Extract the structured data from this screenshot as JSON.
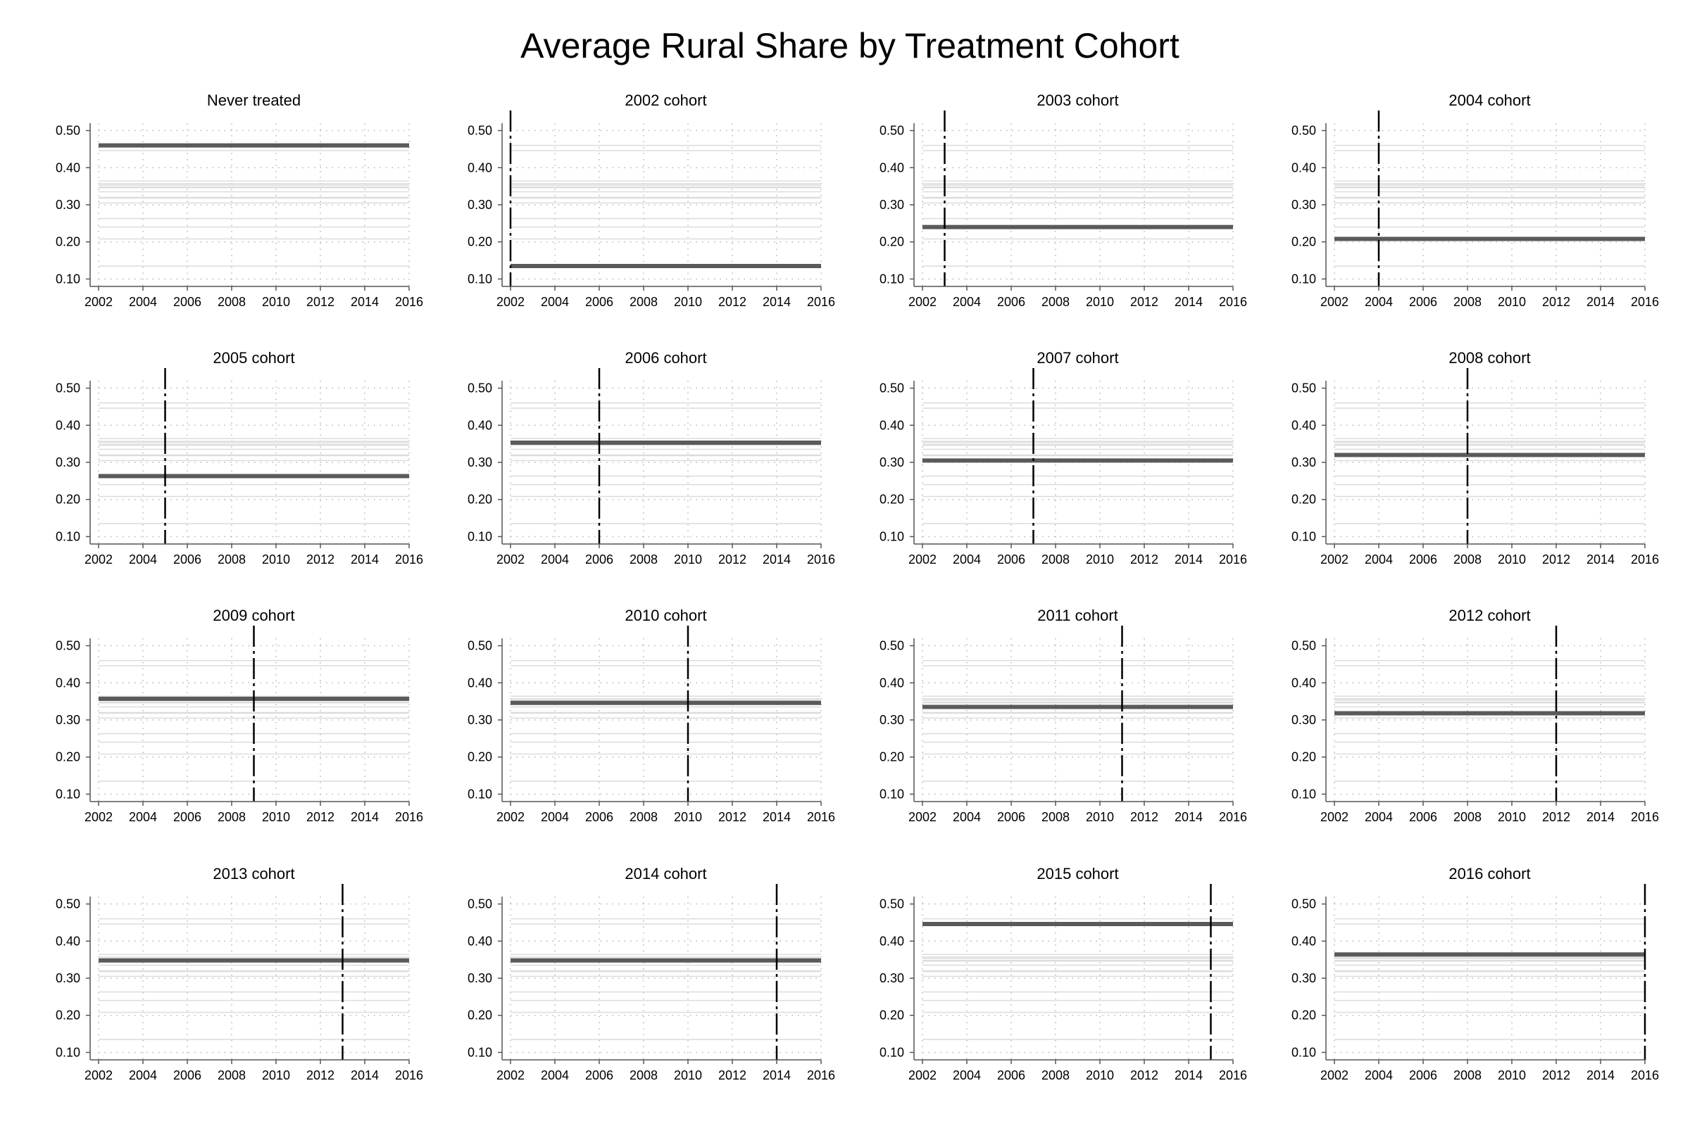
{
  "title": "Average Rural Share by Treatment Cohort",
  "colors": {
    "highlight": "#5a5a5a",
    "background_lines": "#dcdcdc",
    "grid": "#b5b5b5",
    "axis": "#555555",
    "treatment_line": "#000000"
  },
  "chart_data": {
    "type": "line",
    "title": "Average Rural Share by Treatment Cohort",
    "layout": "4x4 small multiples",
    "x_range": [
      2002,
      2016
    ],
    "x_ticks": [
      "2002",
      "2004",
      "2006",
      "2008",
      "2010",
      "2012",
      "2014",
      "2016"
    ],
    "y_range": [
      0.08,
      0.52
    ],
    "y_ticks": [
      "0.10",
      "0.20",
      "0.30",
      "0.40",
      "0.50"
    ],
    "grid": true,
    "background_series_values": [
      0.46,
      0.135,
      0.24,
      0.208,
      0.263,
      0.353,
      0.305,
      0.32,
      0.357,
      0.346,
      0.335,
      0.318,
      0.348,
      0.348,
      0.446,
      0.364
    ],
    "panels": [
      {
        "title": "Never treated",
        "value": 0.46,
        "treatment_year": null
      },
      {
        "title": "2002 cohort",
        "value": 0.135,
        "treatment_year": 2002
      },
      {
        "title": "2003 cohort",
        "value": 0.24,
        "treatment_year": 2003
      },
      {
        "title": "2004 cohort",
        "value": 0.208,
        "treatment_year": 2004
      },
      {
        "title": "2005 cohort",
        "value": 0.263,
        "treatment_year": 2005
      },
      {
        "title": "2006 cohort",
        "value": 0.353,
        "treatment_year": 2006
      },
      {
        "title": "2007 cohort",
        "value": 0.305,
        "treatment_year": 2007
      },
      {
        "title": "2008 cohort",
        "value": 0.32,
        "treatment_year": 2008
      },
      {
        "title": "2009 cohort",
        "value": 0.357,
        "treatment_year": 2009
      },
      {
        "title": "2010 cohort",
        "value": 0.346,
        "treatment_year": 2010
      },
      {
        "title": "2011 cohort",
        "value": 0.335,
        "treatment_year": 2011
      },
      {
        "title": "2012 cohort",
        "value": 0.318,
        "treatment_year": 2012
      },
      {
        "title": "2013 cohort",
        "value": 0.348,
        "treatment_year": 2013
      },
      {
        "title": "2014 cohort",
        "value": 0.348,
        "treatment_year": 2014
      },
      {
        "title": "2015 cohort",
        "value": 0.446,
        "treatment_year": 2015
      },
      {
        "title": "2016 cohort",
        "value": 0.364,
        "treatment_year": 2016
      }
    ]
  }
}
